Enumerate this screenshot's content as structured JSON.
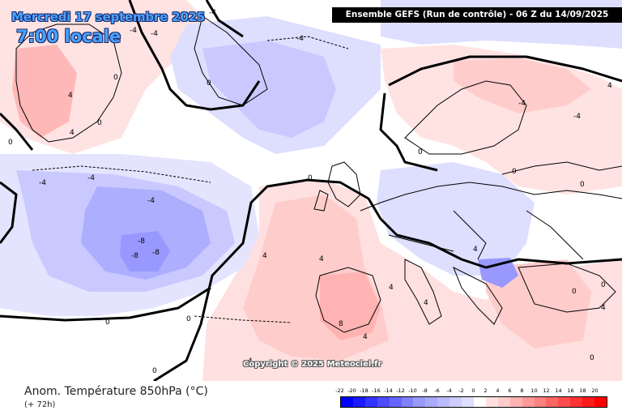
{
  "header": {
    "date": "Mercredi 17 septembre 2025",
    "time": "7:00 locale",
    "run_info": "Ensemble GEFS  (Run de contrôle)  -  06 Z du 14/09/2025"
  },
  "footer": {
    "parameter": "Anom. Température 850hPa (°C)",
    "lead": "(+ 72h)",
    "copyright": "Copyright © 2025 Meteociel.fr"
  },
  "legend": {
    "labels": [
      "-22",
      "-20",
      "-18",
      "-16",
      "-14",
      "-12",
      "-10",
      "-8",
      "-6",
      "-4",
      "-2",
      "0",
      "2",
      "4",
      "6",
      "8",
      "10",
      "12",
      "14",
      "16",
      "18",
      "20"
    ],
    "colors": [
      "#0000ff",
      "#1a1aff",
      "#3333ff",
      "#4d4dff",
      "#6666ff",
      "#8080ff",
      "#9999ff",
      "#aaaaff",
      "#bbbbff",
      "#ccccff",
      "#dedeff",
      "#ffffff",
      "#ffe0e0",
      "#ffcccc",
      "#ffb3b3",
      "#ff9999",
      "#ff8080",
      "#ff6666",
      "#ff4d4d",
      "#ff3333",
      "#ff1a1a",
      "#ff0000"
    ]
  },
  "map_labels": [
    {
      "text": "-4"
    },
    {
      "text": "-4"
    },
    {
      "text": "-4"
    },
    {
      "text": "-4"
    },
    {
      "text": "0"
    },
    {
      "text": "0"
    },
    {
      "text": "0"
    },
    {
      "text": "4"
    },
    {
      "text": "4"
    },
    {
      "text": "0"
    },
    {
      "text": "-4"
    },
    {
      "text": "-4"
    },
    {
      "text": "-4"
    },
    {
      "text": "-8"
    },
    {
      "text": "-8"
    },
    {
      "text": "-8"
    },
    {
      "text": "0"
    },
    {
      "text": "0"
    },
    {
      "text": "4"
    },
    {
      "text": "4"
    },
    {
      "text": "4"
    },
    {
      "text": "4"
    },
    {
      "text": "8"
    },
    {
      "text": "4"
    },
    {
      "text": "0"
    },
    {
      "text": "4"
    },
    {
      "text": "4"
    },
    {
      "text": "4"
    },
    {
      "text": "0"
    },
    {
      "text": "-4"
    },
    {
      "text": "-4"
    },
    {
      "text": "0"
    },
    {
      "text": "0"
    },
    {
      "text": "4"
    },
    {
      "text": "0"
    },
    {
      "text": "0"
    },
    {
      "text": "0"
    },
    {
      "text": "0"
    }
  ]
}
